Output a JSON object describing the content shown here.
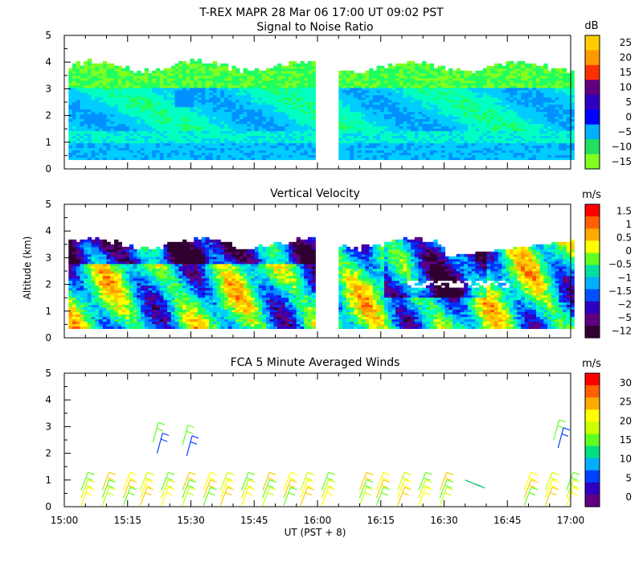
{
  "figure_title": "T-REX   MAPR 28 Mar 06   17:00 UT   09:02   PST",
  "x_axis": {
    "label": "UT   (PST + 8)",
    "range_minutes": [
      0,
      120
    ],
    "ticks": [
      {
        "t": 0,
        "label": "15:00"
      },
      {
        "t": 15,
        "label": "15:15"
      },
      {
        "t": 30,
        "label": "15:30"
      },
      {
        "t": 45,
        "label": "15:45"
      },
      {
        "t": 60,
        "label": "16:00"
      },
      {
        "t": 75,
        "label": "16:15"
      },
      {
        "t": 90,
        "label": "16:30"
      },
      {
        "t": 105,
        "label": "16:45"
      },
      {
        "t": 120,
        "label": "17:00"
      }
    ]
  },
  "y_axis_label": "Altitude  (km)",
  "colors": {
    "colormap": [
      "#300030",
      "#600080",
      "#3000c0",
      "#0030ff",
      "#0090ff",
      "#00ccff",
      "#00ffc0",
      "#20ff60",
      "#80ff20",
      "#ffff00",
      "#ffcc00",
      "#ff9900",
      "#ff5000",
      "#ff0000"
    ]
  },
  "chart_data": [
    {
      "type": "heatmap",
      "title": "Signal to Noise Ratio",
      "ylabel": "",
      "ylim": [
        0,
        5
      ],
      "yticks": [
        "0",
        "1",
        "2",
        "3",
        "4",
        "5"
      ],
      "colorbar_unit": "dB",
      "colorbar_labels": [
        "25",
        "20",
        "15",
        "10",
        "5",
        "0",
        "−5",
        "−10",
        "−15"
      ],
      "colorbar_colors": [
        "#ffcc00",
        "#ff9900",
        "#ff3000",
        "#600080",
        "#3000c0",
        "#0000ff",
        "#00b0ff",
        "#20e060",
        "#80ff20"
      ],
      "data_segments_minutes": [
        [
          1,
          59
        ],
        [
          65,
          120
        ]
      ],
      "approx_top_km": 3.8,
      "approx_bottom_km": 0.35
    },
    {
      "type": "heatmap",
      "title": "Vertical Velocity",
      "ylabel": "Altitude  (km)",
      "ylim": [
        0,
        5
      ],
      "yticks": [
        "0",
        "1",
        "2",
        "3",
        "4",
        "5"
      ],
      "colorbar_unit": "m/s",
      "colorbar_labels": [
        "1.5",
        "1",
        "0.5",
        "0",
        "−0.5",
        "−1",
        "−1.5",
        "−2",
        "−5",
        "−12"
      ],
      "colorbar_colors": [
        "#ff0000",
        "#ff6000",
        "#ffaa00",
        "#ffff00",
        "#60ff20",
        "#00e0a0",
        "#00b0ff",
        "#0050ff",
        "#3000c0",
        "#600080",
        "#300030"
      ],
      "data_segments_minutes": [
        [
          1,
          59
        ],
        [
          65,
          120
        ]
      ],
      "approx_top_km": 3.5,
      "approx_bottom_km": 0.35
    },
    {
      "type": "scatter",
      "title": "FCA 5 Minute Averaged Winds",
      "ylabel": "",
      "ylim": [
        0,
        5
      ],
      "yticks": [
        "0",
        "1",
        "2",
        "3",
        "4",
        "5"
      ],
      "colorbar_unit": "m/s",
      "colorbar_labels": [
        "30",
        "25",
        "20",
        "15",
        "10",
        "5",
        "0"
      ],
      "colorbar_colors": [
        "#ff0000",
        "#ff6000",
        "#ffaa00",
        "#ffff00",
        "#ccff00",
        "#60ff20",
        "#00e080",
        "#00b0ff",
        "#0040ff",
        "#3000c0",
        "#600080"
      ],
      "low_level_barbs_minutes": [
        4,
        9,
        14,
        18,
        23,
        28,
        33,
        37,
        42,
        47,
        52,
        56,
        61,
        70,
        74,
        79,
        84,
        89,
        109,
        114,
        119
      ],
      "upper_barbs": [
        {
          "t": 21,
          "km": 2.4
        },
        {
          "t": 22,
          "km": 2.0
        },
        {
          "t": 28,
          "km": 2.3
        },
        {
          "t": 29,
          "km": 1.9
        },
        {
          "t": 116,
          "km": 2.5
        },
        {
          "t": 117,
          "km": 2.2
        }
      ],
      "isolated_barbs": [
        {
          "t": 95,
          "km": 1.0
        }
      ]
    }
  ]
}
